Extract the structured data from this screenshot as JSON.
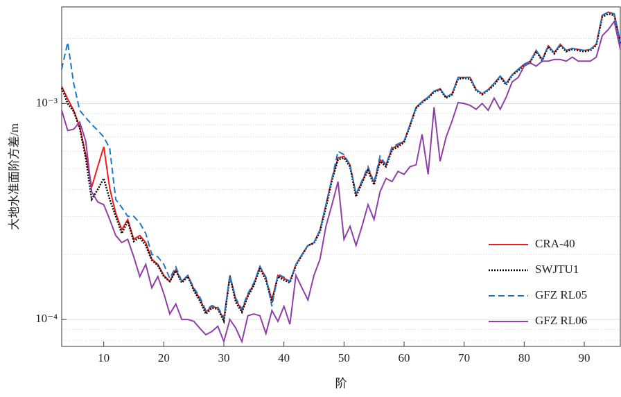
{
  "chart_data": {
    "type": "line",
    "xlabel": "阶",
    "ylabel": "大地水准面阶方差/m",
    "x": [
      3,
      4,
      5,
      6,
      7,
      8,
      9,
      10,
      11,
      12,
      13,
      14,
      15,
      16,
      17,
      18,
      19,
      20,
      21,
      22,
      23,
      24,
      25,
      26,
      27,
      28,
      29,
      30,
      31,
      32,
      33,
      34,
      35,
      36,
      37,
      38,
      39,
      40,
      41,
      42,
      43,
      44,
      45,
      46,
      47,
      48,
      49,
      50,
      51,
      52,
      53,
      54,
      55,
      56,
      57,
      58,
      59,
      60,
      61,
      62,
      63,
      64,
      65,
      66,
      67,
      68,
      69,
      70,
      71,
      72,
      73,
      74,
      75,
      76,
      77,
      78,
      79,
      80,
      81,
      82,
      83,
      84,
      85,
      86,
      87,
      88,
      89,
      90,
      91,
      92,
      93,
      94,
      95,
      96
    ],
    "series": [
      {
        "name": "CRA-40",
        "color": "#ee1c1c",
        "style": "solid",
        "values": [
          0.0012,
          0.00105,
          0.00093,
          0.00078,
          0.00058,
          0.00041,
          0.00051,
          0.00063,
          0.000405,
          0.00031,
          0.00026,
          0.00029,
          0.000235,
          0.000245,
          0.000227,
          0.00019,
          0.00018,
          0.00016,
          0.00015,
          0.00017,
          0.00015,
          0.00016,
          0.000138,
          0.000125,
          0.000108,
          0.000115,
          0.000113,
          0.0001,
          0.00016,
          0.000123,
          0.00011,
          0.00013,
          0.000146,
          0.000176,
          0.000155,
          0.000123,
          0.00016,
          0.000155,
          0.00015,
          0.00018,
          0.0002,
          0.00022,
          0.000227,
          0.00026,
          0.00034,
          0.00045,
          0.00056,
          0.00057,
          0.00052,
          0.00038,
          0.000435,
          0.0005,
          0.00043,
          0.00055,
          0.00052,
          0.00062,
          0.00064,
          0.00067,
          0.0008,
          0.00096,
          0.00102,
          0.00107,
          0.00114,
          0.00117,
          0.00107,
          0.00111,
          0.00132,
          0.00132,
          0.00132,
          0.00116,
          0.00111,
          0.00116,
          0.00124,
          0.00134,
          0.00124,
          0.00136,
          0.00144,
          0.00152,
          0.00157,
          0.00176,
          0.0016,
          0.00185,
          0.00172,
          0.00188,
          0.00176,
          0.0018,
          0.00178,
          0.00176,
          0.00178,
          0.00188,
          0.00256,
          0.00265,
          0.0026,
          0.00192
        ]
      },
      {
        "name": "SWJTU1",
        "color": "#000000",
        "style": "dotted",
        "values": [
          0.00118,
          0.001,
          0.00092,
          0.00077,
          0.00056,
          0.00036,
          0.0004,
          0.00045,
          0.00036,
          0.0003,
          0.00025,
          0.000285,
          0.00023,
          0.00024,
          0.00022,
          0.000188,
          0.000178,
          0.000158,
          0.00015,
          0.000168,
          0.000148,
          0.000158,
          0.000136,
          0.000122,
          0.000106,
          0.000113,
          0.000112,
          9.8e-05,
          0.000158,
          0.00012,
          0.000108,
          0.000128,
          0.000144,
          0.000172,
          0.000152,
          0.00012,
          0.000158,
          0.000152,
          0.000148,
          0.000178,
          0.000198,
          0.00022,
          0.000225,
          0.000255,
          0.00033,
          0.00044,
          0.00055,
          0.00056,
          0.00051,
          0.00037,
          0.00043,
          0.00049,
          0.00042,
          0.00054,
          0.00051,
          0.00061,
          0.00063,
          0.00066,
          0.00079,
          0.00095,
          0.00101,
          0.00106,
          0.00113,
          0.00116,
          0.00106,
          0.0011,
          0.0013,
          0.00131,
          0.0013,
          0.00115,
          0.0011,
          0.00115,
          0.00122,
          0.00133,
          0.00122,
          0.00135,
          0.00142,
          0.0015,
          0.00155,
          0.00174,
          0.00158,
          0.00183,
          0.0017,
          0.00186,
          0.00174,
          0.00178,
          0.00176,
          0.00174,
          0.00176,
          0.00186,
          0.00252,
          0.0026,
          0.00256,
          0.0019
        ]
      },
      {
        "name": "GFZ RL05",
        "color": "#1f77c4",
        "style": "dashed",
        "values": [
          0.00144,
          0.00192,
          0.00124,
          0.00093,
          0.00086,
          0.0008,
          0.00075,
          0.0007,
          0.00062,
          0.00036,
          0.00033,
          0.0003,
          0.0003,
          0.00028,
          0.00025,
          0.0002,
          0.000195,
          0.00018,
          0.000155,
          0.000175,
          0.00015,
          0.00016,
          0.00014,
          0.000127,
          0.00011,
          0.000116,
          0.000114,
          0.000102,
          0.00016,
          0.000125,
          0.000112,
          0.000132,
          0.000148,
          0.000176,
          0.000157,
          0.000115,
          0.000162,
          0.000157,
          0.00015,
          0.00018,
          0.0002,
          0.00022,
          0.000227,
          0.00026,
          0.00034,
          0.00045,
          0.0006,
          0.00058,
          0.00052,
          0.00038,
          0.00044,
          0.00051,
          0.00043,
          0.00057,
          0.00052,
          0.00063,
          0.00065,
          0.00067,
          0.0008,
          0.00096,
          0.00102,
          0.00107,
          0.00114,
          0.00117,
          0.00107,
          0.00111,
          0.00132,
          0.00132,
          0.00132,
          0.00116,
          0.00111,
          0.00116,
          0.00124,
          0.00134,
          0.00124,
          0.00136,
          0.00144,
          0.00152,
          0.00157,
          0.00176,
          0.0016,
          0.00185,
          0.00172,
          0.00188,
          0.00176,
          0.0018,
          0.00178,
          0.00176,
          0.00178,
          0.00188,
          0.00256,
          0.00265,
          0.0026,
          0.00192
        ]
      },
      {
        "name": "GFZ RL06",
        "color": "#8e3fa6",
        "style": "solid",
        "values": [
          0.00093,
          0.00075,
          0.00076,
          0.00082,
          0.00067,
          0.00039,
          0.00035,
          0.00034,
          0.00029,
          0.000245,
          0.000227,
          0.000235,
          0.000195,
          0.000158,
          0.00018,
          0.00014,
          0.000158,
          0.000132,
          0.000106,
          0.000118,
          0.0001,
          0.0001,
          9.8e-05,
          9.1e-05,
          8.5e-05,
          8.8e-05,
          9.3e-05,
          7.9e-05,
          0.0001,
          9.1e-05,
          7.9e-05,
          0.000104,
          0.000106,
          0.000104,
          8.6e-05,
          0.00011,
          9.8e-05,
          0.000115,
          9.5e-05,
          0.00016,
          0.00014,
          0.000123,
          0.00016,
          0.00019,
          0.00027,
          0.00034,
          0.000435,
          0.000235,
          0.00027,
          0.00022,
          0.00027,
          0.00034,
          0.00029,
          0.00039,
          0.00045,
          0.000435,
          0.000485,
          0.00047,
          0.00051,
          0.00052,
          0.00072,
          0.00047,
          0.00096,
          0.00054,
          0.0007,
          0.00083,
          0.00101,
          0.001,
          0.00098,
          0.00094,
          0.001,
          0.00093,
          0.00106,
          0.00094,
          0.00107,
          0.00126,
          0.00132,
          0.00149,
          0.00154,
          0.00149,
          0.00157,
          0.00157,
          0.0016,
          0.0016,
          0.00157,
          0.00164,
          0.00157,
          0.00157,
          0.00157,
          0.00164,
          0.00206,
          0.0022,
          0.0024,
          0.00178
        ]
      }
    ],
    "xlim": [
      3,
      96
    ],
    "xticks": [
      10,
      20,
      30,
      40,
      50,
      60,
      70,
      80,
      90
    ],
    "ylim": [
      7.5e-05,
      0.0028
    ],
    "ylog": true,
    "yticks": [
      {
        "value": 0.0001,
        "label": "10⁻⁴"
      },
      {
        "value": 0.001,
        "label": "10⁻³"
      }
    ],
    "yminorticks": [
      8e-05,
      9e-05,
      0.0002,
      0.0003,
      0.0004,
      0.0005,
      0.0006,
      0.0007,
      0.0008,
      0.0009,
      0.002
    ],
    "grid": true,
    "legend": "lower right"
  }
}
